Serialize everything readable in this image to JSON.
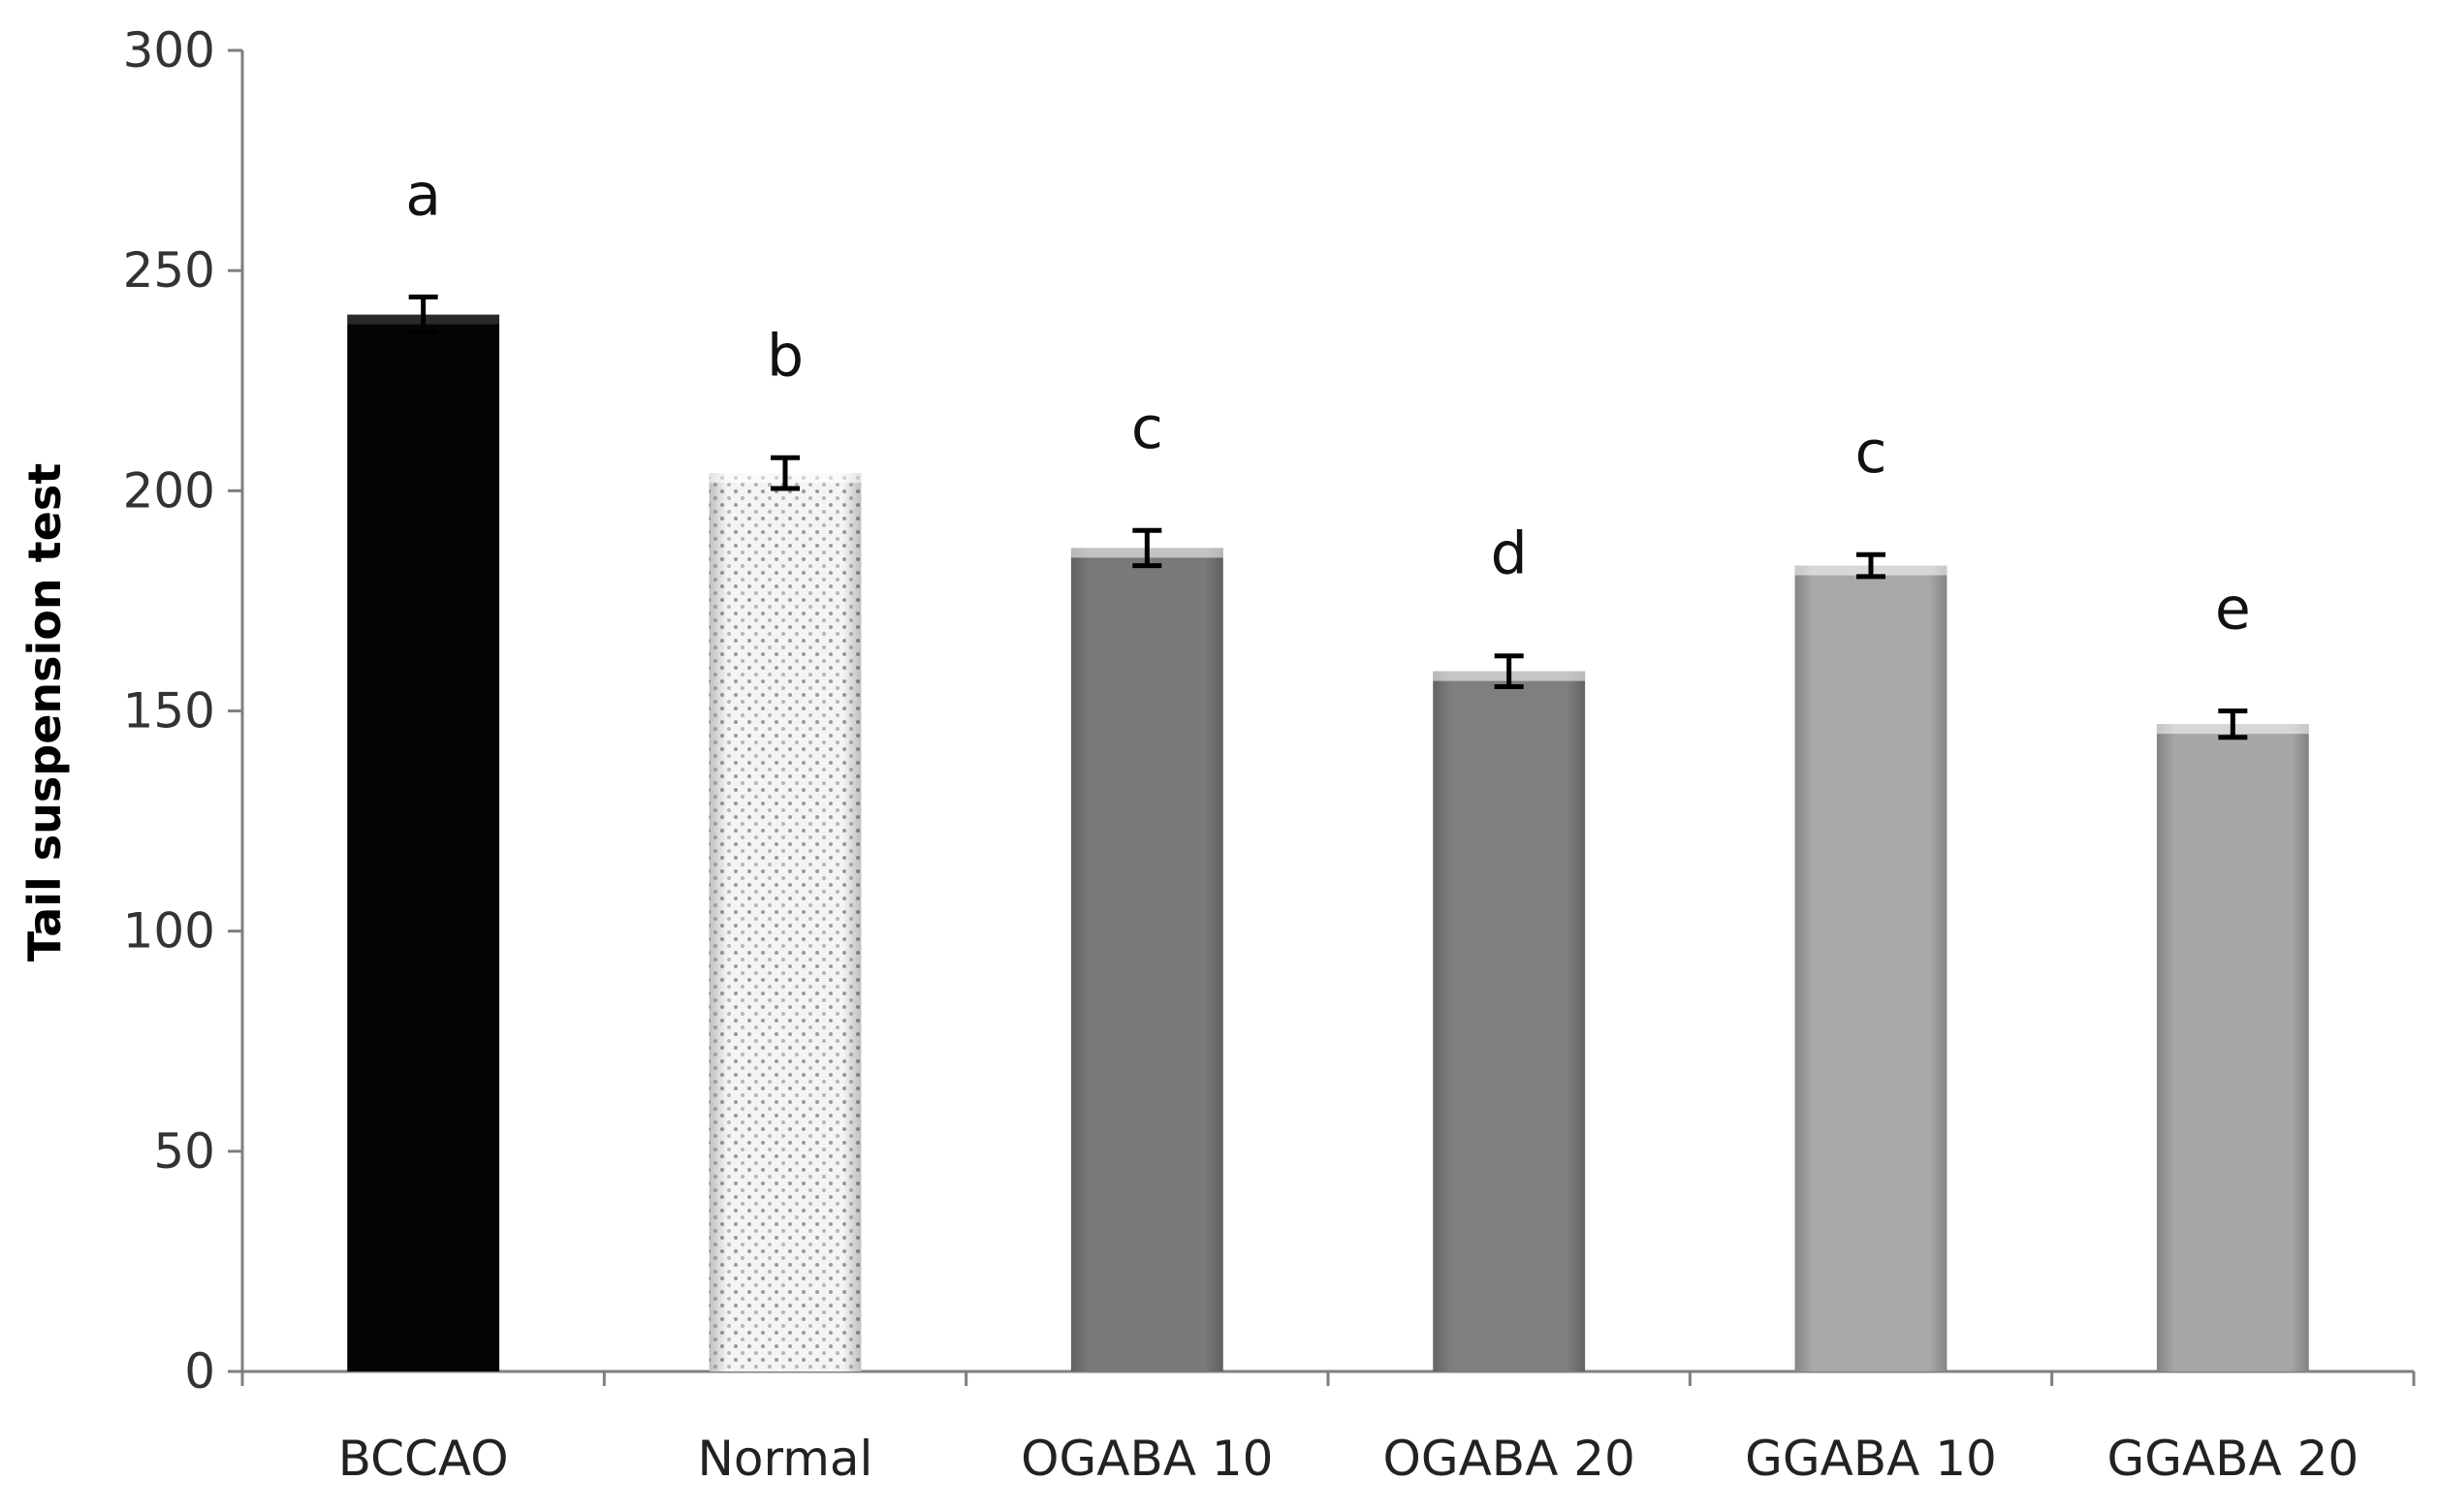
{
  "chart_data": {
    "type": "bar",
    "title": "",
    "xlabel": "",
    "ylabel": "Tail suspension test",
    "ylim": [
      0,
      300
    ],
    "yticks": [
      0,
      50,
      100,
      150,
      200,
      250,
      300
    ],
    "ytick_labels": [
      "0",
      "50",
      "100",
      "150",
      "200",
      "250",
      "300"
    ],
    "categories": [
      "BCCAO",
      "Normal",
      "OGABA 10",
      "OGABA 20",
      "GGABA 10",
      "GGABA 20"
    ],
    "values": [
      240,
      204,
      187,
      159,
      183,
      147
    ],
    "errors": [
      4,
      3.5,
      4,
      3.5,
      2.5,
      3
    ],
    "significance": [
      "a",
      "b",
      "c",
      "d",
      "c",
      "e"
    ],
    "bar_colors": [
      "#050505",
      "#f2f2f2",
      "#7a7a7a",
      "#7f7f7f",
      "#a9a9a9",
      "#a7a7a7"
    ],
    "grid": false,
    "legend": "none"
  }
}
